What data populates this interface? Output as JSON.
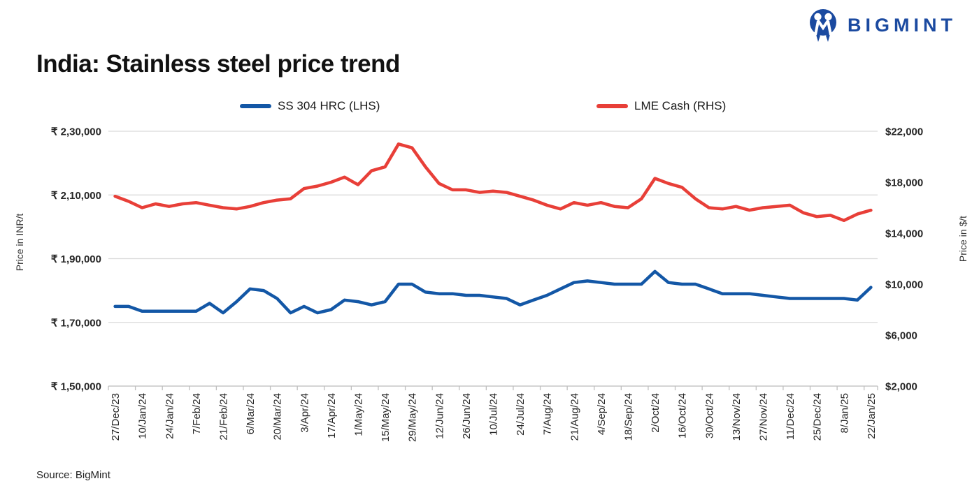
{
  "header": {
    "logo_text": "BIGMINT"
  },
  "title": "India: Stainless steel price trend",
  "legend": [
    {
      "label": "SS 304 HRC (LHS)",
      "color": "#1357a6"
    },
    {
      "label": "LME Cash (RHS)",
      "color": "#e83f38"
    }
  ],
  "source": "Source: BigMint",
  "colors": {
    "brand_blue": "#1b4aa0",
    "series_blue": "#1357a6",
    "series_red": "#e83f38",
    "gridline": "#d9d9d9",
    "axis": "#bfbfbf",
    "axis_text": "#262626"
  },
  "chart_data": {
    "type": "line",
    "title": "India: Stainless steel price trend",
    "grid": "horizontal",
    "legend_position": "top",
    "x_tick_labels": [
      "27/Dec/23",
      "10/Jan/24",
      "24/Jan/24",
      "7/Feb/24",
      "21/Feb/24",
      "6/Mar/24",
      "20/Mar/24",
      "3/Apr/24",
      "17/Apr/24",
      "1/May/24",
      "15/May/24",
      "29/May/24",
      "12/Jun/24",
      "26/Jun/24",
      "10/Jul/24",
      "24/Jul/24",
      "7/Aug/24",
      "21/Aug/24",
      "4/Sep/24",
      "18/Sep/24",
      "2/Oct/24",
      "16/Oct/24",
      "30/Oct/24",
      "13/Nov/24",
      "27/Nov/24",
      "11/Dec/24",
      "25/Dec/24",
      "8/Jan/25",
      "22/Jan/25"
    ],
    "x_label_every_n_points": 2,
    "left_axis": {
      "label": "Price in INR/t",
      "ticks": [
        "₹ 2,30,000",
        "₹ 2,10,000",
        "₹ 1,90,000",
        "₹ 1,70,000",
        "₹ 1,50,000"
      ],
      "range": [
        150000,
        230000
      ]
    },
    "right_axis": {
      "label": "Price in $/t",
      "ticks": [
        "$22,000",
        "$18,000",
        "$14,000",
        "$10,000",
        "$6,000",
        "$2,000"
      ],
      "range": [
        2000,
        22000
      ]
    },
    "series": [
      {
        "name": "SS 304 HRC (LHS)",
        "axis": "left",
        "unit": "INR/t",
        "color": "#1357a6",
        "values": [
          175000,
          175000,
          173500,
          173500,
          173500,
          173500,
          173500,
          176000,
          173000,
          176500,
          180500,
          180000,
          177500,
          173000,
          175000,
          173000,
          174000,
          177000,
          176500,
          175500,
          176500,
          182000,
          182000,
          179500,
          179000,
          179000,
          178500,
          178500,
          178000,
          177500,
          175500,
          177000,
          178500,
          180500,
          182500,
          183000,
          182500,
          182000,
          182000,
          182000,
          186000,
          182500,
          182000,
          182000,
          180500,
          179000,
          179000,
          179000,
          178500,
          178000,
          177500,
          177500,
          177500,
          177500,
          177500,
          177000,
          181000
        ]
      },
      {
        "name": "LME Cash (RHS)",
        "axis": "right",
        "unit": "$/t",
        "color": "#e83f38",
        "values": [
          16900,
          16500,
          16000,
          16300,
          16100,
          16300,
          16400,
          16200,
          16000,
          15900,
          16100,
          16400,
          16600,
          16700,
          17500,
          17700,
          18000,
          18400,
          17800,
          18900,
          19200,
          21000,
          20700,
          19200,
          17900,
          17400,
          17400,
          17200,
          17300,
          17200,
          16900,
          16600,
          16200,
          15900,
          16400,
          16200,
          16400,
          16100,
          16000,
          16700,
          18300,
          17900,
          17600,
          16700,
          16000,
          15900,
          16100,
          15800,
          16000,
          16100,
          16200,
          15600,
          15300,
          15400,
          15000,
          15500,
          15800
        ]
      }
    ]
  }
}
